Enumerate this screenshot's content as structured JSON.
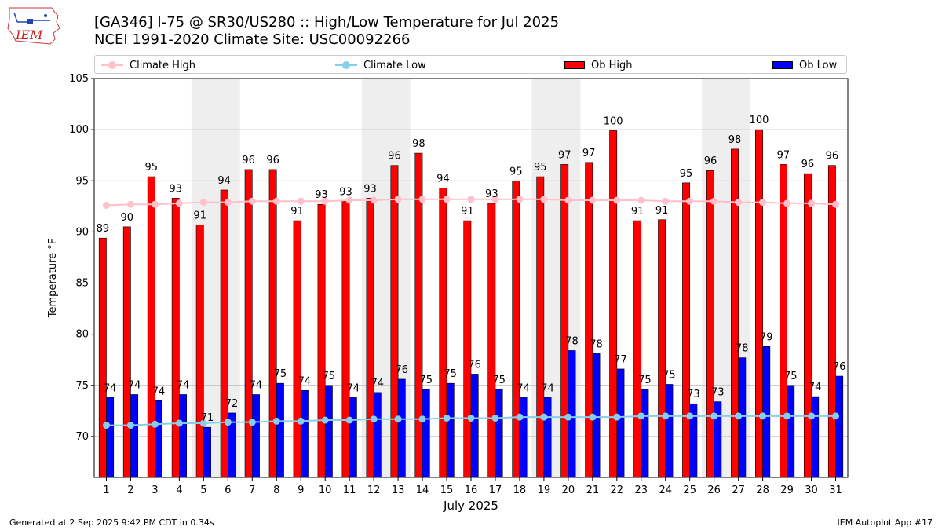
{
  "header": {
    "title_line1": "[GA346] I-75 @ SR30/US280 :: High/Low Temperature for Jul 2025",
    "title_line2": "NCEI 1991-2020 Climate Site: USC00092266",
    "logo_text": "IEM"
  },
  "legend": {
    "climate_high": "Climate High",
    "climate_low": "Climate Low",
    "ob_high": "Ob High",
    "ob_low": "Ob Low"
  },
  "colors": {
    "ob_high": "#ff0000",
    "ob_low": "#0000ff",
    "climate_high": "#ffc0cb",
    "climate_low": "#87ceeb",
    "weekend_shade": "#eeeeee",
    "grid": "#b0b0b0"
  },
  "footer": {
    "left": "Generated at 2 Sep 2025 9:42 PM CDT in 0.34s",
    "right": "IEM Autoplot App #17"
  },
  "chart_data": {
    "type": "bar",
    "xlabel": "July 2025",
    "ylabel": "Temperature °F",
    "ylim": [
      66,
      105
    ],
    "yticks": [
      70,
      75,
      80,
      85,
      90,
      95,
      100,
      105
    ],
    "grid": true,
    "legend_position": "top",
    "categories": [
      "1",
      "2",
      "3",
      "4",
      "5",
      "6",
      "7",
      "8",
      "9",
      "10",
      "11",
      "12",
      "13",
      "14",
      "15",
      "16",
      "17",
      "18",
      "19",
      "20",
      "21",
      "22",
      "23",
      "24",
      "25",
      "26",
      "27",
      "28",
      "29",
      "30",
      "31"
    ],
    "shaded_days": [
      5,
      6,
      12,
      13,
      19,
      20,
      26,
      27
    ],
    "series": [
      {
        "name": "Ob High",
        "kind": "bar",
        "values": [
          89.4,
          90.5,
          95.4,
          93.3,
          90.7,
          94.1,
          96.1,
          96.1,
          91.1,
          92.7,
          93.0,
          93.3,
          96.5,
          97.7,
          94.3,
          91.1,
          92.8,
          95.0,
          95.4,
          96.6,
          96.8,
          99.9,
          91.1,
          91.2,
          94.8,
          96.0,
          98.1,
          100.0,
          96.6,
          95.7,
          96.5
        ],
        "labels": [
          "89",
          "90",
          "95",
          "93",
          "91",
          "94",
          "96",
          "96",
          "91",
          "93",
          "93",
          "93",
          "96",
          "98",
          "94",
          "91",
          "93",
          "95",
          "95",
          "97",
          "97",
          "100",
          "91",
          "91",
          "95",
          "96",
          "98",
          "100",
          "97",
          "96",
          "96"
        ]
      },
      {
        "name": "Ob Low",
        "kind": "bar",
        "values": [
          73.8,
          74.1,
          73.5,
          74.1,
          70.9,
          72.3,
          74.1,
          75.2,
          74.5,
          75.0,
          73.8,
          74.3,
          75.6,
          74.6,
          75.2,
          76.1,
          74.6,
          73.8,
          73.8,
          78.4,
          78.1,
          76.6,
          74.6,
          75.1,
          73.2,
          73.4,
          77.7,
          78.8,
          75.0,
          73.9,
          75.9
        ],
        "labels": [
          "74",
          "74",
          "74",
          "74",
          "71",
          "72",
          "74",
          "75",
          "74",
          "75",
          "74",
          "74",
          "76",
          "75",
          "75",
          "76",
          "75",
          "74",
          "74",
          "78",
          "78",
          "77",
          "75",
          "75",
          "73",
          "73",
          "78",
          "79",
          "75",
          "74",
          "76"
        ]
      },
      {
        "name": "Climate High",
        "kind": "line",
        "values": [
          92.6,
          92.7,
          92.7,
          92.8,
          92.9,
          92.9,
          93.0,
          93.0,
          93.0,
          93.0,
          93.1,
          93.1,
          93.2,
          93.2,
          93.2,
          93.2,
          93.2,
          93.2,
          93.2,
          93.1,
          93.1,
          93.1,
          93.1,
          93.0,
          93.0,
          93.0,
          92.9,
          92.9,
          92.8,
          92.8,
          92.7
        ]
      },
      {
        "name": "Climate Low",
        "kind": "line",
        "values": [
          71.1,
          71.1,
          71.2,
          71.3,
          71.3,
          71.4,
          71.4,
          71.5,
          71.5,
          71.6,
          71.6,
          71.7,
          71.7,
          71.7,
          71.8,
          71.8,
          71.8,
          71.9,
          71.9,
          71.9,
          71.9,
          71.9,
          72.0,
          72.0,
          72.0,
          72.0,
          72.0,
          72.0,
          72.0,
          72.0,
          72.0
        ]
      }
    ]
  }
}
